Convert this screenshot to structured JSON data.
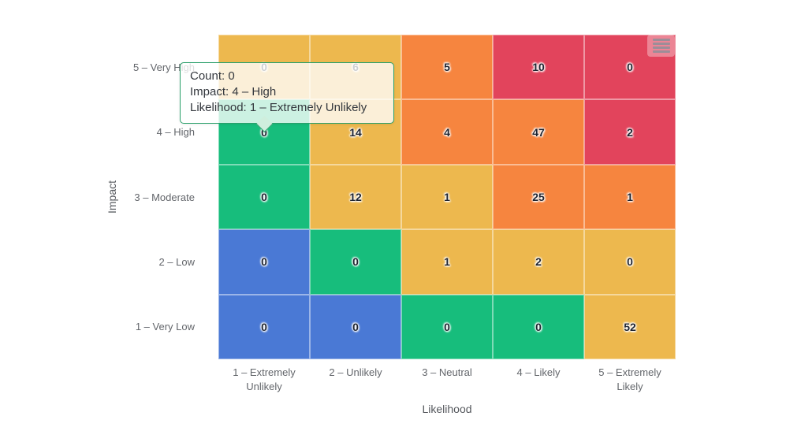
{
  "chart_data": {
    "type": "heatmap",
    "title": "",
    "xlabel": "Likelihood",
    "ylabel": "Impact",
    "x_categories": [
      "1 – Extremely Unlikely",
      "2 – Unlikely",
      "3 – Neutral",
      "4 – Likely",
      "5 – Extremely Likely"
    ],
    "y_categories_top_to_bottom": [
      "5 – Very High",
      "4 – High",
      "3 – Moderate",
      "2 – Low",
      "1 – Very Low"
    ],
    "rows": [
      {
        "impact": "5 – Very High",
        "values": [
          0,
          6,
          5,
          10,
          0
        ],
        "colors": [
          "yellow",
          "yellow",
          "orange",
          "red",
          "red"
        ]
      },
      {
        "impact": "4 – High",
        "values": [
          0,
          14,
          4,
          47,
          2
        ],
        "colors": [
          "green",
          "yellow",
          "orange",
          "orange",
          "red"
        ]
      },
      {
        "impact": "3 – Moderate",
        "values": [
          0,
          12,
          1,
          25,
          1
        ],
        "colors": [
          "green",
          "yellow",
          "yellow",
          "orange",
          "orange"
        ]
      },
      {
        "impact": "2 – Low",
        "values": [
          0,
          0,
          1,
          2,
          0
        ],
        "colors": [
          "blue",
          "green",
          "yellow",
          "yellow",
          "yellow"
        ]
      },
      {
        "impact": "1 – Very Low",
        "values": [
          0,
          0,
          0,
          0,
          52
        ],
        "colors": [
          "blue",
          "blue",
          "green",
          "green",
          "yellow"
        ]
      }
    ],
    "palette": {
      "blue": "#4a79d5",
      "green": "#17bd7c",
      "yellow": "#edb84e",
      "orange": "#f6853f",
      "red": "#e2445c"
    },
    "legend": "off",
    "grid": "off"
  },
  "tooltip": {
    "lines": [
      "Count: 0",
      "Impact: 4 – High",
      "Likelihood: 1 – Extremely Unlikely"
    ],
    "border_color": "#2aa06b"
  },
  "toolbar": {
    "menu_icon": "hamburger-icon"
  }
}
